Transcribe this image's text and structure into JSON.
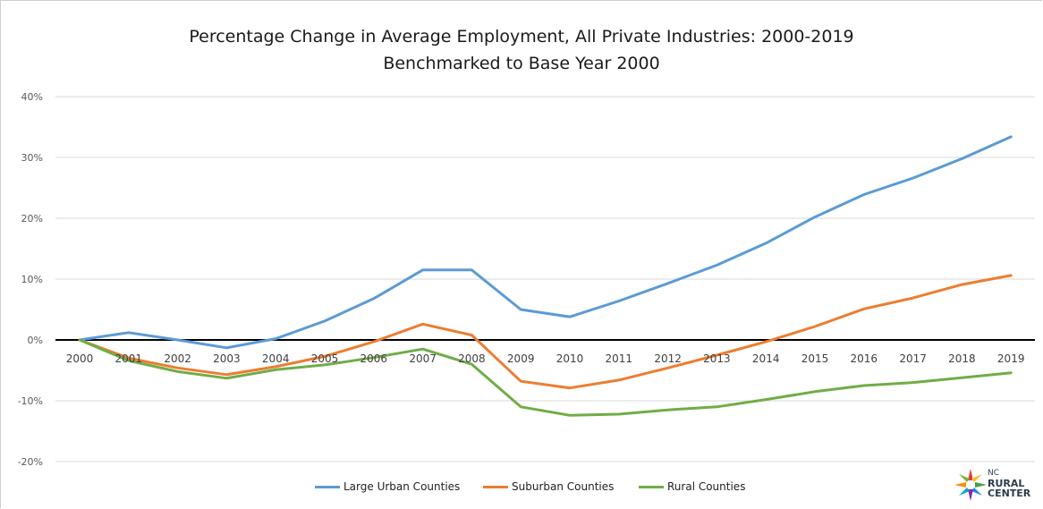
{
  "chart_data": {
    "type": "line",
    "title": "Percentage Change in Average Employment, All Private Industries: 2000-2019",
    "subtitle": "Benchmarked to Base Year 2000",
    "categories": [
      "2000",
      "2001",
      "2002",
      "2003",
      "2004",
      "2005",
      "2006",
      "2007",
      "2008",
      "2009",
      "2010",
      "2011",
      "2012",
      "2013",
      "2014",
      "2015",
      "2016",
      "2017",
      "2018",
      "2019"
    ],
    "y_ticks": [
      "40%",
      "30%",
      "20%",
      "10%",
      "0%",
      "-10%",
      "-20%"
    ],
    "ylim": [
      -20,
      40
    ],
    "grid": true,
    "legend_position": "bottom",
    "series": [
      {
        "name": "Large Urban Counties",
        "color": "#5b9bd5",
        "values": [
          0,
          1.2,
          0,
          -1.3,
          0.2,
          3.1,
          6.8,
          11.5,
          11.5,
          5.0,
          3.8,
          6.4,
          9.3,
          12.3,
          15.9,
          20.2,
          23.9,
          26.6,
          29.8,
          33.4
        ]
      },
      {
        "name": "Suburban Counties",
        "color": "#ed7d31",
        "values": [
          0,
          -3.0,
          -4.6,
          -5.7,
          -4.4,
          -2.7,
          -0.3,
          2.6,
          0.8,
          -6.8,
          -7.9,
          -6.6,
          -4.6,
          -2.5,
          -0.3,
          2.2,
          5.1,
          6.9,
          9.1,
          10.6
        ]
      },
      {
        "name": "Rural Counties",
        "color": "#70ad47",
        "values": [
          0,
          -3.4,
          -5.2,
          -6.3,
          -4.9,
          -4.1,
          -2.9,
          -1.5,
          -4.0,
          -11.0,
          -12.4,
          -12.2,
          -11.5,
          -11.0,
          -9.8,
          -8.5,
          -7.5,
          -7.0,
          -6.2,
          -5.4
        ]
      }
    ]
  },
  "logo": {
    "line1": "NC",
    "line2": "RURAL",
    "line3": "CENTER"
  }
}
